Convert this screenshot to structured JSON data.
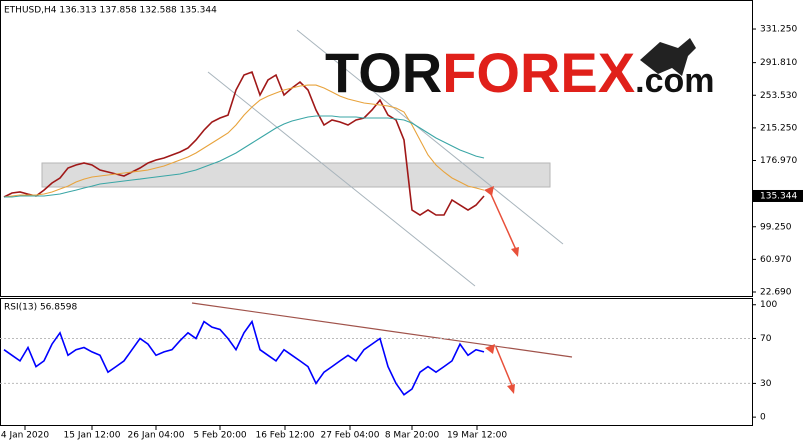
{
  "header": "ETHUSD,H4  136.313 137.858 132.588 135.344",
  "logo": [
    "TOR",
    "FOREX",
    ".com"
  ],
  "last_price": 135.344,
  "chart_data": [
    {
      "type": "line",
      "xlim": [
        -0.5,
        93.5
      ],
      "ylim": [
        18.0,
        365.3
      ],
      "yticks": [
        {
          "value": 331.25,
          "label": "331.250"
        },
        {
          "value": 291.81,
          "label": "291.810"
        },
        {
          "value": 253.53,
          "label": "253.530"
        },
        {
          "value": 215.25,
          "label": "215.250"
        },
        {
          "value": 176.97,
          "label": "176.970"
        },
        {
          "value": 99.25,
          "label": "99.250"
        },
        {
          "value": 60.97,
          "label": "60.970"
        },
        {
          "value": 22.69,
          "label": "22.690"
        }
      ],
      "xticks": [
        {
          "value": 2.625,
          "label": "4 Jan 2020"
        },
        {
          "value": 11,
          "label": "15 Jan 12:00"
        },
        {
          "value": 19,
          "label": "26 Jan 04:00"
        },
        {
          "value": 27,
          "label": "5 Feb 20:00"
        },
        {
          "value": 35.125,
          "label": "16 Feb 12:00"
        },
        {
          "value": 43.25,
          "label": "27 Feb 04:00"
        },
        {
          "value": 51,
          "label": "8 Mar 20:00"
        },
        {
          "value": 59.125,
          "label": "19 Mar 12:00"
        }
      ],
      "series": [
        {
          "color": "#a01818",
          "values": [
            134.1,
            138.8,
            140.0,
            137.6,
            135.3,
            142.3,
            150.6,
            156.4,
            168.2,
            171.7,
            174.0,
            171.7,
            165.8,
            163.5,
            161.1,
            158.8,
            163.5,
            168.2,
            174.0,
            177.6,
            179.9,
            183.4,
            186.9,
            191.6,
            201.0,
            212.7,
            222.1,
            226.8,
            230.3,
            259.7,
            277.3,
            280.8,
            253.8,
            271.4,
            277.3,
            253.8,
            262.0,
            269.1,
            259.7,
            236.2,
            218.6,
            224.5,
            222.1,
            218.6,
            224.5,
            226.8,
            236.2,
            247.9,
            230.3,
            224.5,
            201.0,
            118.9,
            113.0,
            118.9,
            113.0,
            113.0,
            130.6,
            124.7,
            118.9,
            124.7,
            135.3
          ]
        },
        {
          "color": "#e8a33c",
          "values": [
            134.1,
            135.3,
            136.5,
            136.5,
            136.5,
            137.7,
            140.0,
            143.5,
            147.0,
            151.7,
            155.2,
            157.6,
            158.8,
            160.0,
            161.1,
            162.3,
            163.5,
            164.6,
            165.8,
            168.2,
            170.5,
            174.0,
            177.6,
            181.1,
            185.8,
            191.6,
            197.5,
            203.4,
            209.2,
            218.6,
            230.3,
            239.7,
            247.9,
            252.6,
            256.2,
            259.7,
            262.0,
            264.4,
            265.5,
            265.5,
            262.0,
            257.3,
            252.6,
            249.1,
            246.8,
            244.4,
            243.3,
            242.1,
            240.9,
            238.6,
            233.9,
            218.6,
            201.0,
            183.4,
            171.7,
            163.5,
            156.4,
            151.7,
            147.0,
            144.7,
            142.3
          ]
        },
        {
          "color": "#3aa6a6",
          "values": [
            134.1,
            134.1,
            135.3,
            135.3,
            135.3,
            135.3,
            136.5,
            137.7,
            140.0,
            142.3,
            144.7,
            147.0,
            149.4,
            150.6,
            151.7,
            152.9,
            154.1,
            155.2,
            156.4,
            157.6,
            158.8,
            160.0,
            161.1,
            163.5,
            165.8,
            169.3,
            172.9,
            176.4,
            181.1,
            185.8,
            191.6,
            197.5,
            203.4,
            209.2,
            215.1,
            219.8,
            223.3,
            225.7,
            228.0,
            229.2,
            229.2,
            229.2,
            228.0,
            228.0,
            228.0,
            226.8,
            226.8,
            226.8,
            226.8,
            225.7,
            224.5,
            220.9,
            215.1,
            209.2,
            203.4,
            198.7,
            194.0,
            189.3,
            185.8,
            182.1,
            179.9
          ]
        }
      ]
    },
    {
      "type": "line",
      "title": "RSI(13) 56.8598",
      "xlim": [
        -0.5,
        93.5
      ],
      "ylim": [
        -7,
        106
      ],
      "yticks": [
        100,
        70,
        30,
        0
      ],
      "series": [
        {
          "color": "#0000ff",
          "values": [
            60,
            55,
            50,
            62,
            45,
            50,
            65,
            75,
            55,
            60,
            62,
            58,
            55,
            40,
            45,
            50,
            60,
            70,
            65,
            55,
            58,
            60,
            68,
            75,
            70,
            85,
            80,
            78,
            70,
            60,
            75,
            85,
            60,
            55,
            50,
            60,
            55,
            50,
            45,
            30,
            40,
            45,
            50,
            55,
            50,
            60,
            65,
            70,
            45,
            30,
            20,
            25,
            40,
            45,
            40,
            45,
            50,
            65,
            55,
            60,
            58
          ]
        }
      ]
    }
  ]
}
